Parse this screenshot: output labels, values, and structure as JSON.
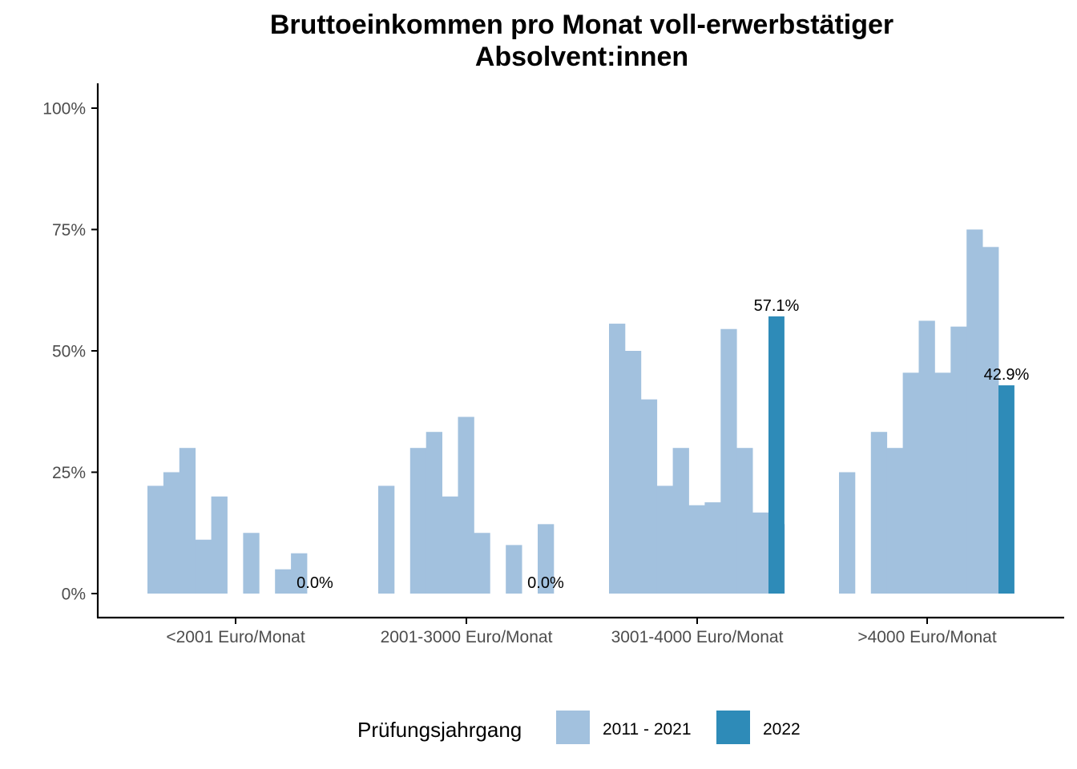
{
  "chart_data": {
    "type": "bar",
    "title_lines": [
      "Bruttoeinkommen pro Monat voll-erwerbstätiger",
      "Absolvent:innen"
    ],
    "xlabel": "",
    "ylabel": "",
    "ylim": [
      0,
      1
    ],
    "yticks": [
      0,
      0.25,
      0.5,
      0.75,
      1.0
    ],
    "ytick_labels": [
      "0%",
      "25%",
      "50%",
      "75%",
      "100%"
    ],
    "categories": [
      "<2001 Euro/Monat",
      "2001-3000 Euro/Monat",
      "3001-4000 Euro/Monat",
      ">4000 Euro/Monat"
    ],
    "grid": false,
    "legend": {
      "title": "Prüfungsjahrgang",
      "position": "bottom",
      "entries": [
        {
          "label": "2011 - 2021",
          "color": "#a2c1de"
        },
        {
          "label": "2022",
          "color": "#2e8bb8"
        }
      ]
    },
    "series": [
      {
        "name": "2011 - 2021",
        "color": "#a2c1de",
        "values": [
          [
            0.222,
            0.25,
            0.3,
            0.111,
            0.2,
            0.0,
            0.125,
            0.0,
            0.05,
            0.083
          ],
          [
            0.222,
            0.0,
            0.3,
            0.333,
            0.2,
            0.364,
            0.125,
            0.0,
            0.1,
            0.0,
            0.143
          ],
          [
            0.556,
            0.5,
            0.4,
            0.222,
            0.3,
            0.182,
            0.188,
            0.545,
            0.3,
            0.167,
            0.143
          ],
          [
            0.25,
            0.0,
            0.333,
            0.3,
            0.455,
            0.562,
            0.455,
            0.55,
            0.75,
            0.714
          ]
        ]
      },
      {
        "name": "2022",
        "color": "#2e8bb8",
        "values": [
          0.0,
          0.0,
          0.571,
          0.429
        ],
        "labels": [
          "0.0%",
          "0.0%",
          "57.1%",
          "42.9%"
        ]
      }
    ]
  }
}
